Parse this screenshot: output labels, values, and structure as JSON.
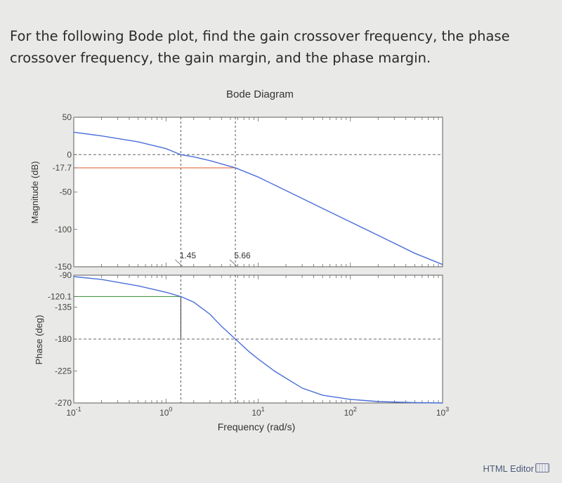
{
  "question": {
    "text": "For the following Bode plot, find the gain crossover frequency, the phase crossover frequency, the gain margin, and the phase margin."
  },
  "footer": {
    "html_editor_label": "HTML Editor",
    "keyboard_icon": "keyboard-icon"
  },
  "chart_data": {
    "type": "line",
    "title": "Bode Diagram",
    "xlabel": "Frequency  (rad/s)",
    "xscale": "log",
    "xlim": [
      0.1,
      1000
    ],
    "x_ticks": [
      {
        "value": 0.1,
        "base": "10",
        "exp": "-1"
      },
      {
        "value": 1,
        "base": "10",
        "exp": "0"
      },
      {
        "value": 10,
        "base": "10",
        "exp": "1"
      },
      {
        "value": 100,
        "base": "10",
        "exp": "2"
      },
      {
        "value": 1000,
        "base": "10",
        "exp": "3"
      }
    ],
    "colors": {
      "curve": "#4a6fd8",
      "gain_marker": "#e06a3c",
      "phase_marker": "#4a9a4a"
    },
    "magnitude": {
      "ylabel": "Magnitude (dB)",
      "ylim": [
        -150,
        50
      ],
      "y_ticks": [
        {
          "value": 50,
          "label": "50"
        },
        {
          "value": 0,
          "label": "0"
        },
        {
          "value": -17.7,
          "label": "-17.7"
        },
        {
          "value": -50,
          "label": "-50"
        },
        {
          "value": -100,
          "label": "-100"
        },
        {
          "value": -150,
          "label": "-150"
        }
      ],
      "series": {
        "x": [
          0.1,
          0.2,
          0.5,
          1,
          1.45,
          2,
          3,
          5.66,
          10,
          20,
          50,
          100,
          200,
          500,
          1000
        ],
        "y": [
          30,
          25,
          17,
          8,
          0,
          -3,
          -8,
          -17.7,
          -30,
          -48,
          -72,
          -90,
          -108,
          -132,
          -147
        ]
      },
      "reference_line": 0,
      "markers": [
        {
          "x": 1.45,
          "label": "1.45"
        },
        {
          "x": 5.66,
          "label": "5.66"
        }
      ],
      "annotation": {
        "y": -17.7,
        "x_end": 5.66
      }
    },
    "phase": {
      "ylabel": "Phase (deg)",
      "ylim": [
        -270,
        -90
      ],
      "y_ticks": [
        {
          "value": -90,
          "label": "-90"
        },
        {
          "value": -120.1,
          "label": "-120.1"
        },
        {
          "value": -135,
          "label": "-135"
        },
        {
          "value": -180,
          "label": "-180"
        },
        {
          "value": -225,
          "label": "-225"
        },
        {
          "value": -270,
          "label": "-270"
        }
      ],
      "series": {
        "x": [
          0.1,
          0.2,
          0.5,
          1,
          1.45,
          2,
          3,
          4,
          5.66,
          8,
          10,
          15,
          20,
          30,
          50,
          100,
          200,
          500,
          1000
        ],
        "y": [
          -92,
          -96,
          -105,
          -114,
          -120.1,
          -128,
          -145,
          -162,
          -180,
          -198,
          -208,
          -225,
          -235,
          -249,
          -259,
          -265,
          -268,
          -269.5,
          -270
        ]
      },
      "reference_line": -180,
      "annotation": {
        "y": -120.1,
        "x_end": 1.45
      }
    }
  }
}
